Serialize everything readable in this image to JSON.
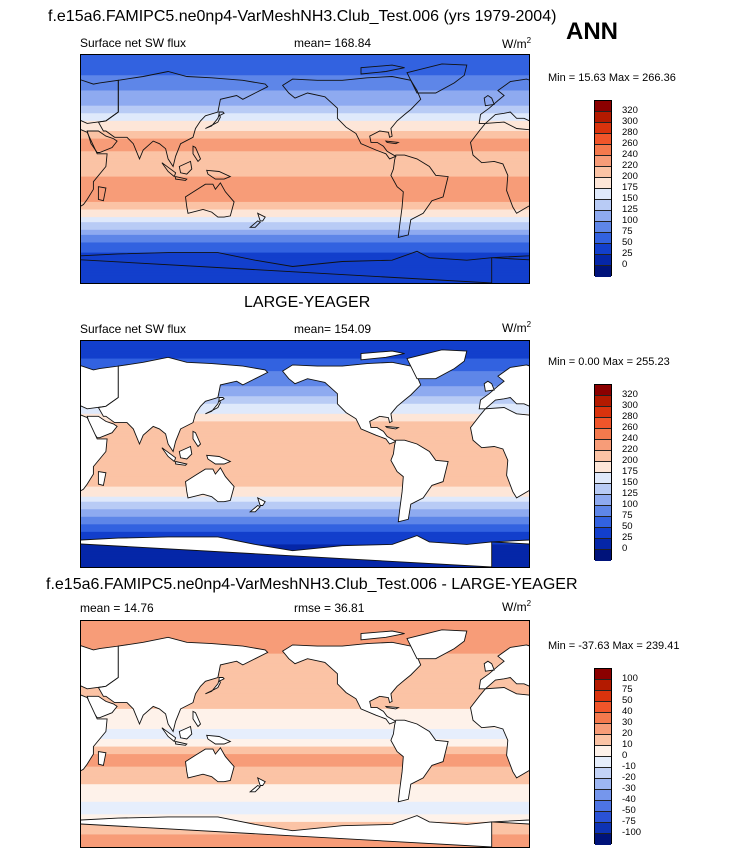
{
  "header": {
    "title": "f.e15a6.FAMIPC5.ne0np4-VarMeshNH3.Club_Test.006 (yrs 1979-2004)",
    "season": "ANN"
  },
  "panels": [
    {
      "title": "",
      "left_label": "Surface net SW flux",
      "center_label": "mean= 168.84",
      "units": "W/m",
      "units_sup": "2",
      "minmax": "Min =  15.63 Max = 266.36"
    },
    {
      "title": "LARGE-YEAGER",
      "left_label": "Surface net SW flux",
      "center_label": "mean= 154.09",
      "units": "W/m",
      "units_sup": "2",
      "minmax": "Min =   0.00 Max = 255.23"
    },
    {
      "title": "f.e15a6.FAMIPC5.ne0np4-VarMeshNH3.Club_Test.006 - LARGE-YEAGER",
      "left_label": "mean =  14.76",
      "center_label": "rmse =  36.81",
      "units": "W/m",
      "units_sup": "2",
      "minmax": "Min = -37.63 Max = 239.41"
    }
  ],
  "colorbars": {
    "field": {
      "levels": [
        "320",
        "300",
        "280",
        "260",
        "240",
        "220",
        "200",
        "175",
        "150",
        "125",
        "100",
        "75",
        "50",
        "25",
        "0"
      ],
      "colors": [
        "#8b0000",
        "#b31a00",
        "#d9330d",
        "#f0552a",
        "#f4794d",
        "#f79c78",
        "#fbc3a5",
        "#fde6d8",
        "#dfe9fb",
        "#b8cbf5",
        "#8eaaf0",
        "#5e86e8",
        "#3262e0",
        "#123fcc",
        "#0526a8",
        "#00137a"
      ]
    },
    "diff": {
      "levels": [
        "100",
        "75",
        "50",
        "40",
        "30",
        "20",
        "10",
        "0",
        "-10",
        "-20",
        "-30",
        "-40",
        "-50",
        "-75",
        "-100"
      ],
      "colors": [
        "#8b0000",
        "#b31a00",
        "#d9330d",
        "#f0552a",
        "#f4794d",
        "#f79c78",
        "#fbc3a5",
        "#fef2ea",
        "#e6eefc",
        "#c3d3f7",
        "#9db6f2",
        "#7596ec",
        "#4d74e4",
        "#2a52d6",
        "#0e33b4",
        "#00137a"
      ]
    }
  },
  "chart_data": [
    {
      "type": "heatmap",
      "title": "f.e15a6.FAMIPC5.ne0np4-VarMeshNH3.Club_Test.006 (yrs 1979-2004)",
      "variable": "Surface net SW flux",
      "season": "ANN",
      "units": "W/m2",
      "mean": 168.84,
      "min": 15.63,
      "max": 266.36,
      "contour_levels": [
        0,
        25,
        50,
        75,
        100,
        125,
        150,
        175,
        200,
        220,
        240,
        260,
        280,
        300,
        320
      ],
      "x_range": [
        0,
        360
      ],
      "y_range": [
        -90,
        90
      ],
      "zonal_profile": [
        {
          "lat": 80,
          "value": 60
        },
        {
          "lat": 65,
          "value": 95
        },
        {
          "lat": 50,
          "value": 125
        },
        {
          "lat": 40,
          "value": 165
        },
        {
          "lat": 30,
          "value": 200
        },
        {
          "lat": 20,
          "value": 230
        },
        {
          "lat": 10,
          "value": 215
        },
        {
          "lat": 0,
          "value": 205
        },
        {
          "lat": -10,
          "value": 230
        },
        {
          "lat": -20,
          "value": 240
        },
        {
          "lat": -30,
          "value": 210
        },
        {
          "lat": -40,
          "value": 165
        },
        {
          "lat": -50,
          "value": 110
        },
        {
          "lat": -60,
          "value": 70
        },
        {
          "lat": -70,
          "value": 40
        },
        {
          "lat": -85,
          "value": 25
        }
      ]
    },
    {
      "type": "heatmap",
      "title": "LARGE-YEAGER",
      "variable": "Surface net SW flux",
      "season": "ANN",
      "units": "W/m2",
      "mean": 154.09,
      "min": 0.0,
      "max": 255.23,
      "contour_levels": [
        0,
        25,
        50,
        75,
        100,
        125,
        150,
        175,
        200,
        220,
        240,
        260,
        280,
        300,
        320
      ],
      "x_range": [
        0,
        360
      ],
      "y_range": [
        -90,
        90
      ],
      "zonal_profile": [
        {
          "lat": 80,
          "value": 40
        },
        {
          "lat": 65,
          "value": 75
        },
        {
          "lat": 50,
          "value": 110
        },
        {
          "lat": 40,
          "value": 150
        },
        {
          "lat": 30,
          "value": 185
        },
        {
          "lat": 20,
          "value": 215
        },
        {
          "lat": 10,
          "value": 205
        },
        {
          "lat": 0,
          "value": 200
        },
        {
          "lat": -10,
          "value": 215
        },
        {
          "lat": -20,
          "value": 220
        },
        {
          "lat": -30,
          "value": 190
        },
        {
          "lat": -40,
          "value": 145
        },
        {
          "lat": -50,
          "value": 95
        },
        {
          "lat": -60,
          "value": 55
        },
        {
          "lat": -70,
          "value": 30
        },
        {
          "lat": -85,
          "value": 0
        }
      ]
    },
    {
      "type": "heatmap",
      "title": "f.e15a6.FAMIPC5.ne0np4-VarMeshNH3.Club_Test.006 - LARGE-YEAGER",
      "units": "W/m2",
      "mean": 14.76,
      "rmse": 36.81,
      "min": -37.63,
      "max": 239.41,
      "contour_levels": [
        -100,
        -75,
        -50,
        -40,
        -30,
        -20,
        -10,
        0,
        10,
        20,
        30,
        40,
        50,
        75,
        100
      ],
      "x_range": [
        0,
        360
      ],
      "y_range": [
        -90,
        90
      ],
      "zonal_profile": [
        {
          "lat": 80,
          "value": 20
        },
        {
          "lat": 65,
          "value": 20
        },
        {
          "lat": 50,
          "value": 10
        },
        {
          "lat": 40,
          "value": 10
        },
        {
          "lat": 30,
          "value": 15
        },
        {
          "lat": 20,
          "value": 10
        },
        {
          "lat": 10,
          "value": 5
        },
        {
          "lat": 0,
          "value": -5
        },
        {
          "lat": -10,
          "value": 10
        },
        {
          "lat": -20,
          "value": 25
        },
        {
          "lat": -30,
          "value": 15
        },
        {
          "lat": -40,
          "value": 10
        },
        {
          "lat": -50,
          "value": 5
        },
        {
          "lat": -60,
          "value": -10
        },
        {
          "lat": -70,
          "value": 10
        },
        {
          "lat": -85,
          "value": 25
        }
      ]
    }
  ]
}
